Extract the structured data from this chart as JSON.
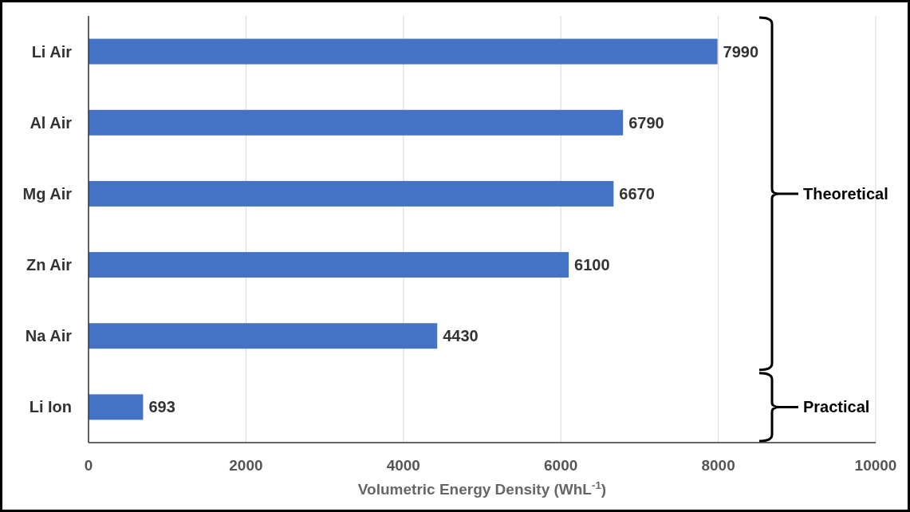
{
  "chart_data": {
    "type": "bar",
    "orientation": "horizontal",
    "xlabel": "Volumetric Energy Density (WhL$^{-1}$)",
    "categories": [
      "Li Air",
      "Al Air",
      "Mg Air",
      "Zn Air",
      "Na Air",
      "Li Ion"
    ],
    "values": [
      7990,
      6790,
      6670,
      6100,
      4430,
      693
    ],
    "color": "#4472c4",
    "xlim": [
      0,
      10000
    ],
    "xticks": [
      0,
      2000,
      4000,
      6000,
      8000,
      10000
    ],
    "grid": "x",
    "data_labels": true,
    "annotations": [
      "Theoretical",
      "Practical"
    ]
  }
}
